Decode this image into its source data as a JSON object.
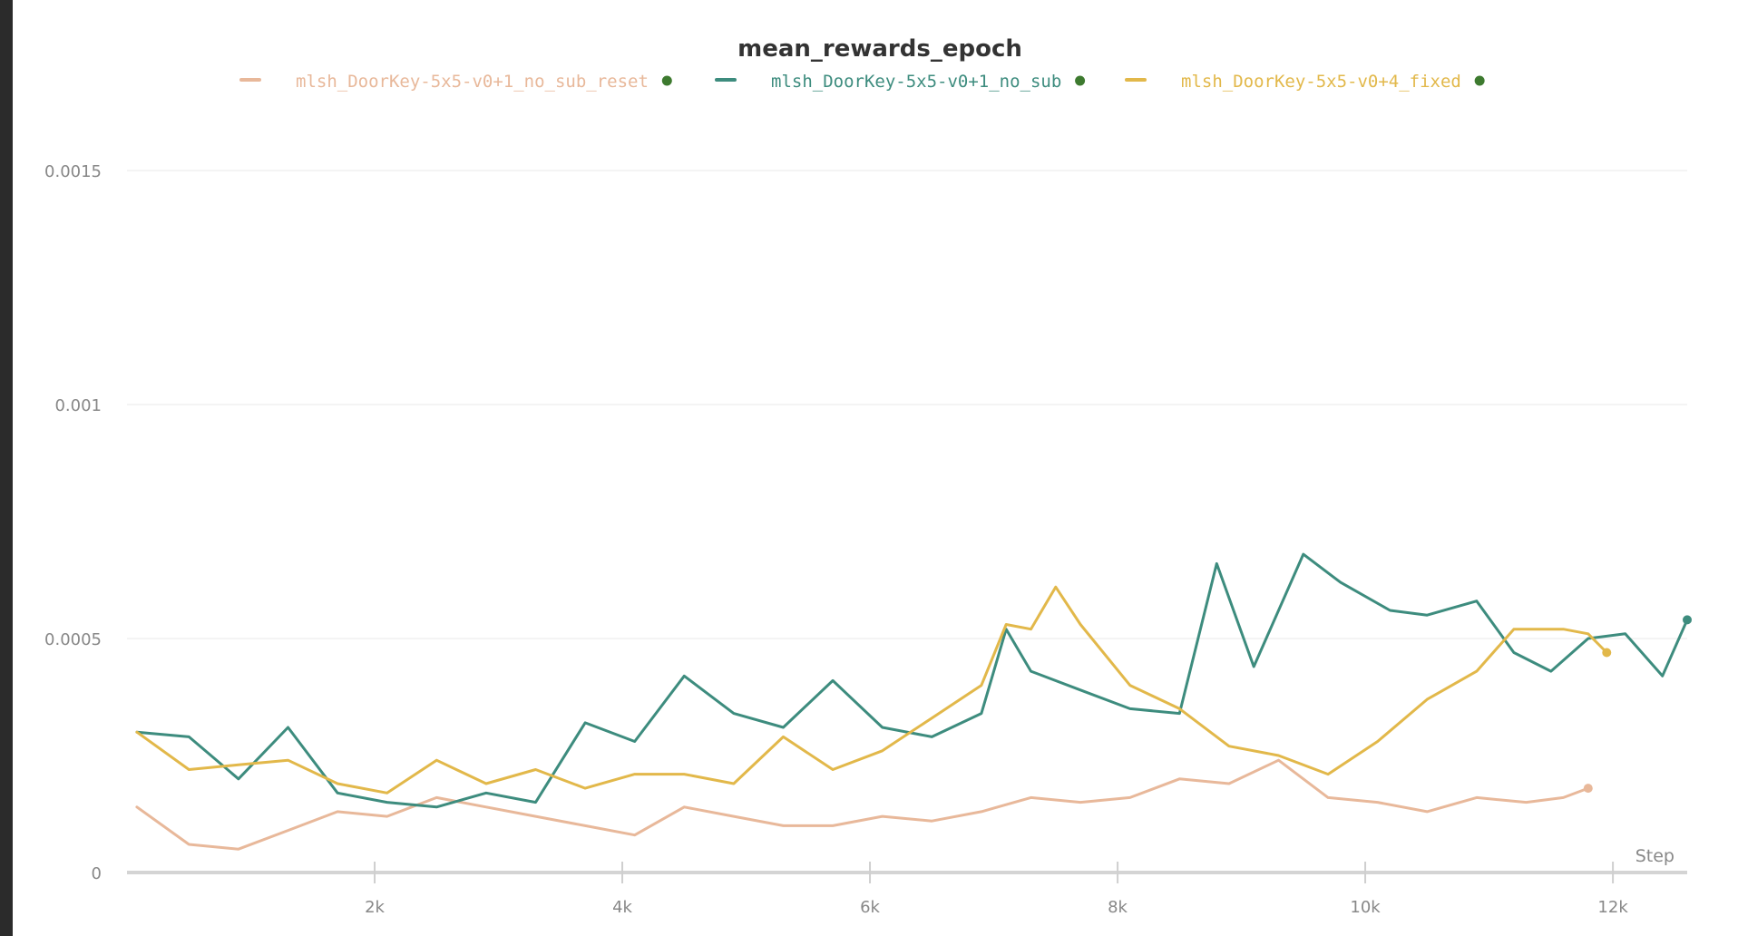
{
  "chart_data": {
    "type": "line",
    "title": "mean_rewards_epoch",
    "xlabel": "Step",
    "ylabel": "",
    "xlim": [
      0,
      12600
    ],
    "ylim": [
      0,
      0.0015
    ],
    "x_ticks": [
      2000,
      4000,
      6000,
      8000,
      10000,
      12000
    ],
    "x_tick_labels": [
      "2k",
      "4k",
      "6k",
      "8k",
      "10k",
      "12k"
    ],
    "y_ticks": [
      0,
      0.0005,
      0.001,
      0.0015
    ],
    "y_tick_labels": [
      "0",
      "0.0005",
      "0.001",
      "0.0015"
    ],
    "grid": true,
    "legend_position": "top-center",
    "series": [
      {
        "name": "mlsh_DoorKey-5x5-v0+1_no_sub_reset",
        "color": "#e8b89a",
        "x": [
          80,
          500,
          900,
          1300,
          1700,
          2100,
          2500,
          2900,
          3300,
          3700,
          4100,
          4500,
          4900,
          5300,
          5700,
          6100,
          6500,
          6900,
          7300,
          7700,
          8100,
          8500,
          8900,
          9300,
          9700,
          10100,
          10500,
          10900,
          11300,
          11600,
          11800
        ],
        "values": [
          0.00014,
          6e-05,
          5e-05,
          9e-05,
          0.00013,
          0.00012,
          0.00016,
          0.00014,
          0.00012,
          0.0001,
          8e-05,
          0.00014,
          0.00012,
          0.0001,
          0.0001,
          0.00012,
          0.00011,
          0.00013,
          0.00016,
          0.00015,
          0.00016,
          0.0002,
          0.00019,
          0.00024,
          0.00016,
          0.00015,
          0.00013,
          0.00016,
          0.00015,
          0.00016,
          0.00018
        ]
      },
      {
        "name": "mlsh_DoorKey-5x5-v0+1_no_sub",
        "color": "#3d8c7e",
        "x": [
          80,
          500,
          900,
          1300,
          1700,
          2100,
          2500,
          2900,
          3300,
          3700,
          4100,
          4500,
          4900,
          5300,
          5700,
          6100,
          6500,
          6900,
          7100,
          7300,
          7700,
          8100,
          8500,
          8800,
          9100,
          9500,
          9800,
          10200,
          10500,
          10900,
          11200,
          11500,
          11800,
          12100,
          12400,
          12600
        ],
        "values": [
          0.0003,
          0.00029,
          0.0002,
          0.00031,
          0.00017,
          0.00015,
          0.00014,
          0.00017,
          0.00015,
          0.00032,
          0.00028,
          0.00042,
          0.00034,
          0.00031,
          0.00041,
          0.00031,
          0.00029,
          0.00034,
          0.00052,
          0.00043,
          0.00039,
          0.00035,
          0.00034,
          0.00066,
          0.00044,
          0.00068,
          0.00062,
          0.00056,
          0.00055,
          0.00058,
          0.00047,
          0.00043,
          0.0005,
          0.00051,
          0.00042,
          0.00054
        ]
      },
      {
        "name": "mlsh_DoorKey-5x5-v0+4_fixed",
        "color": "#e2b84a",
        "x": [
          80,
          500,
          900,
          1300,
          1700,
          2100,
          2500,
          2900,
          3300,
          3700,
          4100,
          4500,
          4900,
          5300,
          5700,
          6100,
          6500,
          6900,
          7100,
          7300,
          7500,
          7700,
          8100,
          8500,
          8900,
          9300,
          9700,
          10100,
          10500,
          10900,
          11200,
          11600,
          11800,
          11950
        ],
        "values": [
          0.0003,
          0.00022,
          0.00023,
          0.00024,
          0.00019,
          0.00017,
          0.00024,
          0.00019,
          0.00022,
          0.00018,
          0.00021,
          0.00021,
          0.00019,
          0.00029,
          0.00022,
          0.00026,
          0.00033,
          0.0004,
          0.00053,
          0.00052,
          0.00061,
          0.00053,
          0.0004,
          0.00035,
          0.00027,
          0.00025,
          0.00021,
          0.00028,
          0.00037,
          0.00043,
          0.00052,
          0.00052,
          0.00051,
          0.00047
        ]
      }
    ]
  }
}
